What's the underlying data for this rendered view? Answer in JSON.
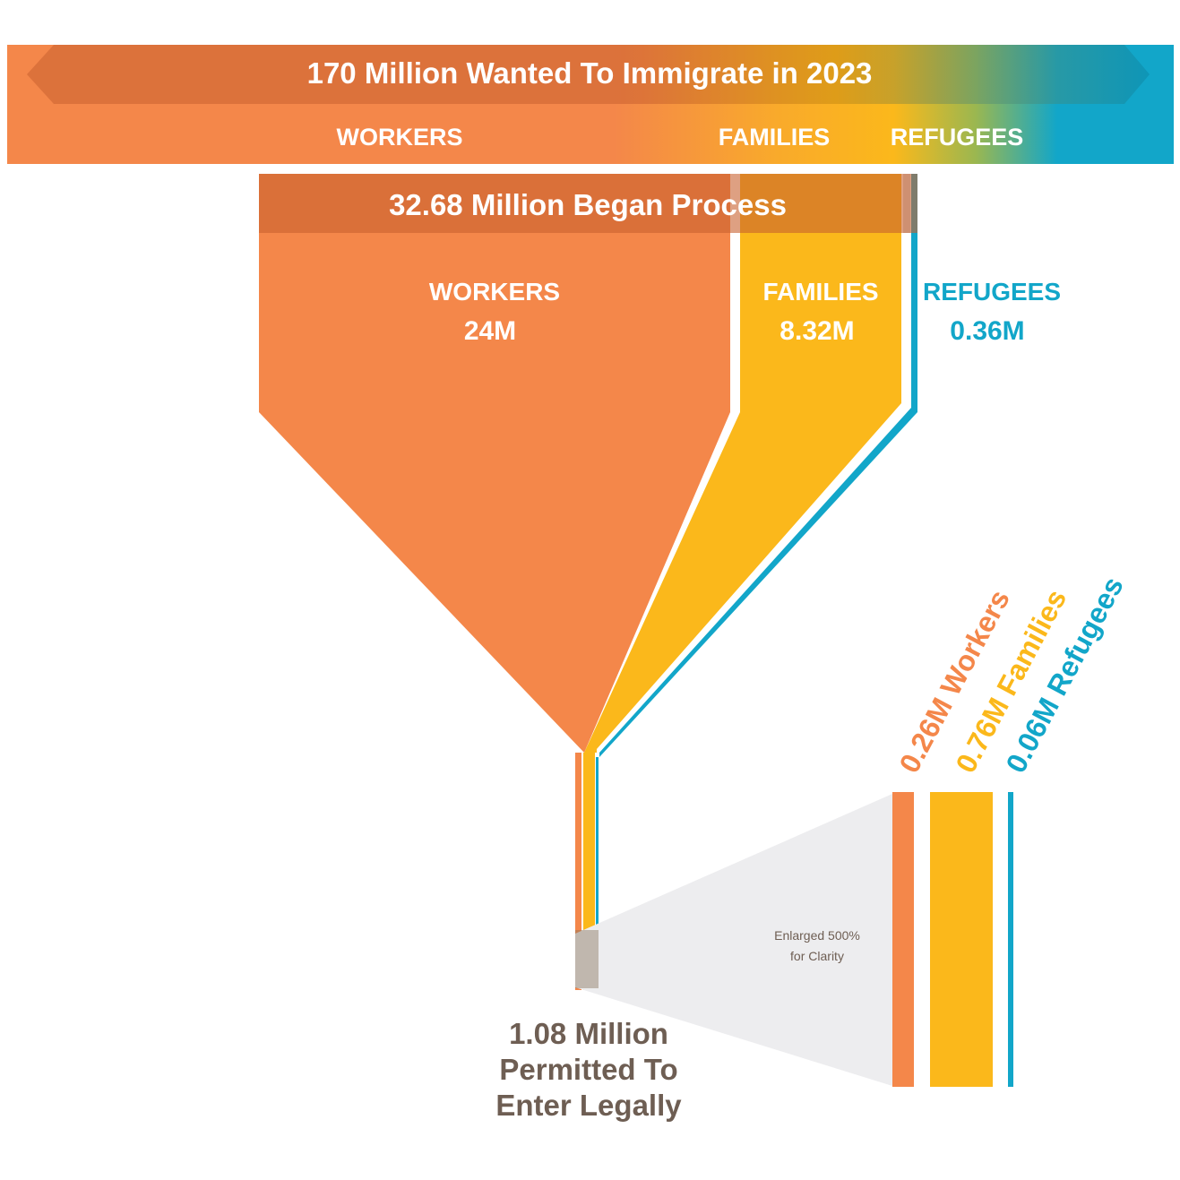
{
  "colors": {
    "workers": "#F4874A",
    "families": "#FBB81B",
    "refugees": "#12A6C9",
    "band_dark": "#D06E3D",
    "label_brown": "#6E5E53",
    "zoom_gray": "#EDEDEF"
  },
  "top_banner": {
    "title": "170 Million Wanted To Immigrate in 2023",
    "labels": {
      "workers": "WORKERS",
      "families": "FAMILIES",
      "refugees": "REFUGEES"
    }
  },
  "process": {
    "title": "32.68 Million Began Process",
    "workers_label": "WORKERS",
    "workers_value": "24M",
    "families_label": "FAMILIES",
    "families_value": "8.32M",
    "refugees_label": "REFUGEES",
    "refugees_value": "0.36M"
  },
  "result": {
    "line1": "1.08 Million",
    "line2": "Permitted To",
    "line3": "Enter Legally"
  },
  "zoom": {
    "note_line1": "Enlarged 500%",
    "note_line2": "for Clarity"
  },
  "final_counts": {
    "workers": "0.26M Workers",
    "families": "0.76M Families",
    "refugees": "0.06M Refugees"
  },
  "chart_data": {
    "type": "funnel",
    "stages": [
      {
        "name": "Wanted To Immigrate in 2023",
        "total_millions": 170
      },
      {
        "name": "Began Process",
        "total_millions": 32.68,
        "breakdown": {
          "workers": 24,
          "families": 8.32,
          "refugees": 0.36
        }
      },
      {
        "name": "Permitted To Enter Legally",
        "total_millions": 1.08,
        "breakdown": {
          "workers": 0.26,
          "families": 0.76,
          "refugees": 0.06
        }
      }
    ],
    "categories": [
      "Workers",
      "Families",
      "Refugees"
    ]
  }
}
